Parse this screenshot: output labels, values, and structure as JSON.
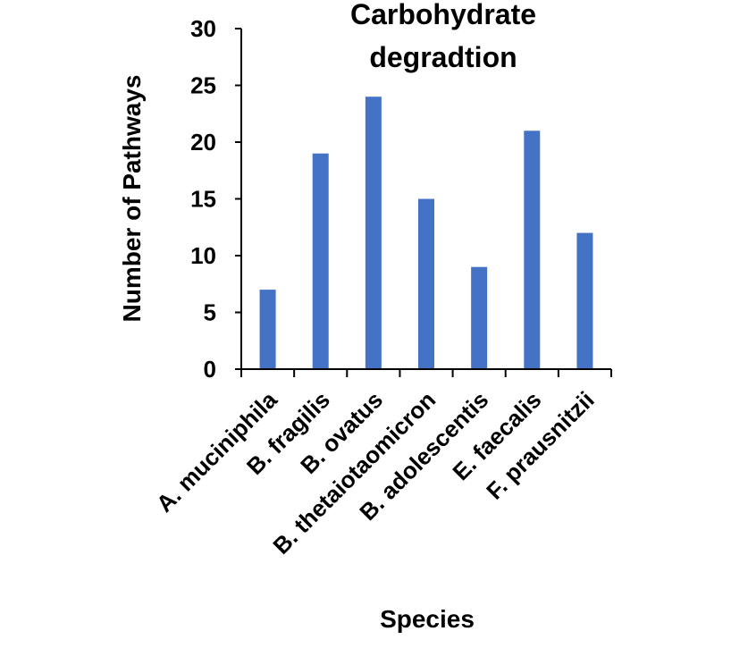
{
  "chart_data": {
    "type": "bar",
    "title_lines": [
      "Carbohydrate",
      "degradtion"
    ],
    "xlabel": "Species",
    "ylabel": "Number of Pathways",
    "categories": [
      "A. muciniphila",
      "B. fragilis",
      "B. ovatus",
      "B. thetaiotaomicron",
      "B. adolescentis",
      "E. faecalis",
      "F. prausnitzii"
    ],
    "values": [
      7,
      19,
      24,
      15,
      9,
      21,
      12
    ],
    "ylim": [
      0,
      30
    ],
    "yticks": [
      "0",
      "5",
      "10",
      "15",
      "20",
      "25",
      "30"
    ],
    "grid": false,
    "legend": "none",
    "bar_color": "#4472C4"
  }
}
